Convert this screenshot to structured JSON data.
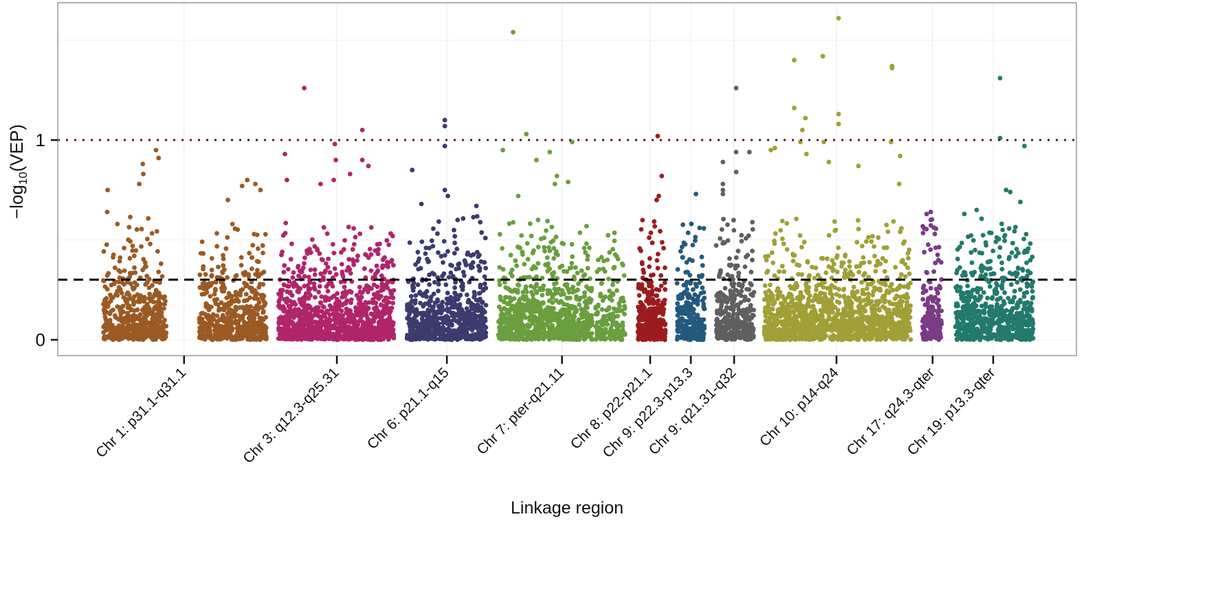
{
  "chart_data": {
    "type": "scatter",
    "title": "",
    "xlabel": "Linkage region",
    "ylabel_main": "−log",
    "ylabel_sub": "10",
    "ylabel_tail": "(VEP)",
    "xlim": [
      0,
      1000
    ],
    "ylim": [
      -0.08,
      1.69
    ],
    "yticks": [
      {
        "value": 0,
        "label": "0"
      },
      {
        "value": 1,
        "label": "1"
      }
    ],
    "grid": true,
    "legend": "none",
    "reference_lines": [
      {
        "name": "suggestive-threshold",
        "value": 0.301,
        "style": "dashed",
        "color": "#000000"
      },
      {
        "name": "significance-threshold",
        "value": 1.0,
        "style": "dotted",
        "color": "#5a1a1a"
      }
    ],
    "regions": [
      {
        "label": "Chr 1: p31.1-q31.1",
        "tick": 124,
        "color": "#9b5a24",
        "clusters": [
          [
            44.5,
            106.6,
            520
          ],
          [
            139,
            205,
            560
          ]
        ],
        "top_points": [
          [
            96.5,
            0.95
          ],
          [
            99,
            0.91
          ],
          [
            83.5,
            0.88
          ],
          [
            49,
            0.75
          ],
          [
            84,
            0.83
          ],
          [
            80,
            0.78
          ],
          [
            48.5,
            0.64
          ],
          [
            186,
            0.8
          ],
          [
            194,
            0.78
          ],
          [
            199,
            0.75
          ],
          [
            167,
            0.7
          ],
          [
            181,
            0.77
          ]
        ]
      },
      {
        "label": "Chr 3: q12.3-q25.31",
        "tick": 274,
        "color": "#b0256a",
        "clusters": [
          [
            216.6,
            330,
            1100
          ]
        ],
        "top_points": [
          [
            242,
            1.26
          ],
          [
            299,
            1.05
          ],
          [
            272,
            0.98
          ],
          [
            223,
            0.93
          ],
          [
            299,
            0.9
          ],
          [
            273,
            0.9
          ],
          [
            225,
            0.8
          ],
          [
            271,
            0.8
          ],
          [
            305,
            0.87
          ],
          [
            258,
            0.78
          ],
          [
            287,
            0.83
          ]
        ]
      },
      {
        "label": "Chr 6: p21.1-q15",
        "tick": 382,
        "color": "#3d3a6e",
        "clusters": [
          [
            342.8,
            420.4,
            700
          ]
        ],
        "top_points": [
          [
            380,
            1.1
          ],
          [
            380,
            1.07
          ],
          [
            380,
            0.97
          ],
          [
            348,
            0.85
          ],
          [
            380,
            0.75
          ],
          [
            383,
            0.72
          ],
          [
            357,
            0.68
          ],
          [
            411,
            0.67
          ]
        ]
      },
      {
        "label": "Chr 7: pter-q21.11",
        "tick": 495,
        "color": "#6a9e3e",
        "clusters": [
          [
            432.5,
            525,
            880
          ],
          [
            528,
            557,
            180
          ]
        ],
        "top_points": [
          [
            447,
            1.54
          ],
          [
            460,
            1.03
          ],
          [
            505,
            0.99
          ],
          [
            437,
            0.95
          ],
          [
            483,
            0.94
          ],
          [
            470,
            0.9
          ],
          [
            490,
            0.82
          ],
          [
            501,
            0.79
          ],
          [
            488,
            0.78
          ],
          [
            452,
            0.72
          ]
        ]
      },
      {
        "label": "Chr 8: p22-p21.1",
        "tick": 581.6,
        "color": "#9b1c1f",
        "clusters": [
          [
            569.5,
            596.5,
            300
          ]
        ],
        "top_points": [
          [
            589,
            1.02
          ],
          [
            593,
            0.82
          ],
          [
            590,
            0.72
          ],
          [
            588,
            0.7
          ]
        ]
      },
      {
        "label": "Chr 9: p22.3-p13.3",
        "tick": 621.5,
        "color": "#235a7c",
        "clusters": [
          [
            608,
            635,
            260
          ]
        ],
        "top_points": [
          [
            626.5,
            0.73
          ],
          [
            622,
            0.58
          ]
        ]
      },
      {
        "label": "Chr 9: q21.31-q32",
        "tick": 664,
        "color": "#5f5f5f",
        "clusters": [
          [
            646.4,
            683.5,
            380
          ]
        ],
        "top_points": [
          [
            666,
            1.26
          ],
          [
            679,
            0.94
          ],
          [
            666,
            0.94
          ],
          [
            653,
            0.89
          ],
          [
            666,
            0.84
          ],
          [
            653,
            0.78
          ],
          [
            653,
            0.75
          ],
          [
            653,
            0.73
          ]
        ]
      },
      {
        "label": "Chr 10: p14-q24",
        "tick": 764.5,
        "color": "#a0a037",
        "clusters": [
          [
            693.6,
            837.4,
            1350
          ]
        ],
        "top_points": [
          [
            766.5,
            1.61
          ],
          [
            723,
            1.4
          ],
          [
            751,
            1.42
          ],
          [
            819,
            1.37
          ],
          [
            819,
            1.36
          ],
          [
            723,
            1.16
          ],
          [
            734,
            1.11
          ],
          [
            766.5,
            1.13
          ],
          [
            766.5,
            1.08
          ],
          [
            731,
            1.05
          ],
          [
            729,
            0.99
          ],
          [
            752,
            0.99
          ],
          [
            700,
            0.95
          ],
          [
            704,
            0.96
          ],
          [
            818,
            0.99
          ],
          [
            827,
            0.92
          ],
          [
            735,
            0.93
          ],
          [
            757,
            0.89
          ],
          [
            786,
            0.87
          ],
          [
            826,
            0.78
          ]
        ]
      },
      {
        "label": "Chr 17: q24.3-qter",
        "tick": 858.8,
        "color": "#7a3c86",
        "clusters": [
          [
            848.8,
            867.7,
            200
          ]
        ],
        "top_points": [
          [
            853,
            0.63
          ],
          [
            857,
            0.64
          ],
          [
            857,
            0.6
          ],
          [
            861,
            0.53
          ]
        ]
      },
      {
        "label": "Chr 19: p13.3-qter",
        "tick": 918.3,
        "color": "#237a6c",
        "clusters": [
          [
            881.2,
            957.5,
            700
          ]
        ],
        "top_points": [
          [
            925,
            1.31
          ],
          [
            925,
            1.01
          ],
          [
            949,
            0.97
          ],
          [
            931,
            0.75
          ],
          [
            935,
            0.74
          ],
          [
            945,
            0.69
          ],
          [
            902,
            0.65
          ],
          [
            890,
            0.63
          ]
        ]
      }
    ]
  }
}
